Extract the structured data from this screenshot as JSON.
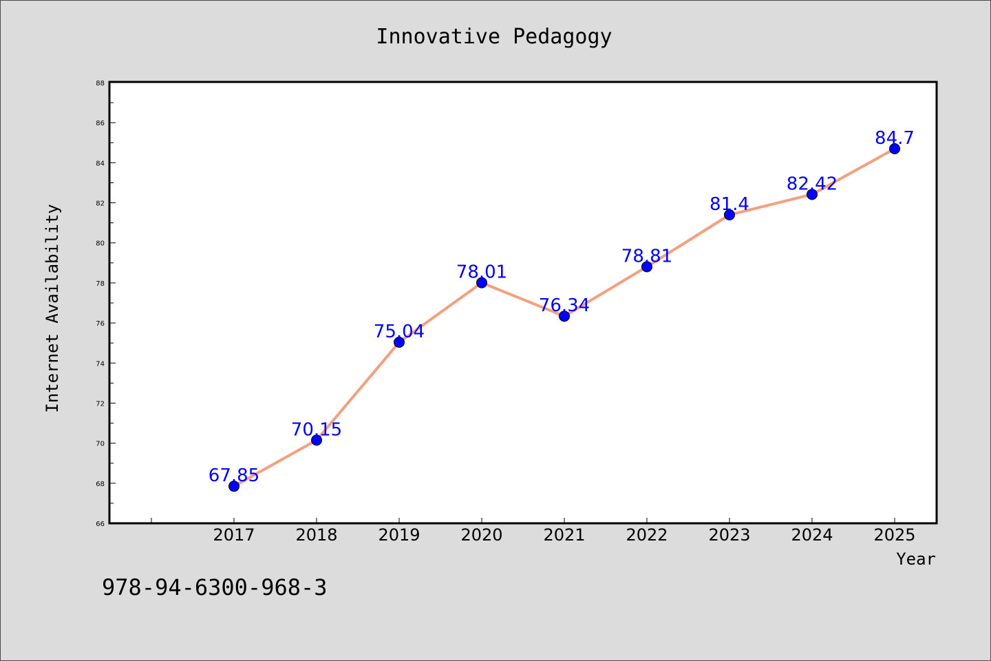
{
  "chart_data": {
    "type": "line",
    "title": "Innovative Pedagogy",
    "xlabel": "Year",
    "ylabel": "Internet Availability",
    "categories": [
      "2017",
      "2018",
      "2019",
      "2020",
      "2021",
      "2022",
      "2023",
      "2024",
      "2025"
    ],
    "series": [
      {
        "values": [
          67.85,
          70.15,
          75.04,
          78.01,
          76.34,
          78.81,
          81.4,
          82.42,
          84.7
        ],
        "data_labels": [
          "67.85",
          "70.15",
          "75.04",
          "78.01",
          "76.34",
          "78.81",
          "81.4",
          "82.42",
          "84.7"
        ]
      }
    ],
    "ylim": [
      66,
      88
    ],
    "yticks": [
      "66",
      "68",
      "70",
      "72",
      "74",
      "76",
      "78",
      "80",
      "82",
      "84",
      "86",
      "88"
    ],
    "grid": false,
    "legend": "none",
    "colors": {
      "line": "#f4a07f",
      "marker": "#0000ff",
      "data_label": "#0000ff",
      "background": "#dcdcdc",
      "plot_background": "#ffffff"
    }
  },
  "footer_text": "978-94-6300-968-3"
}
